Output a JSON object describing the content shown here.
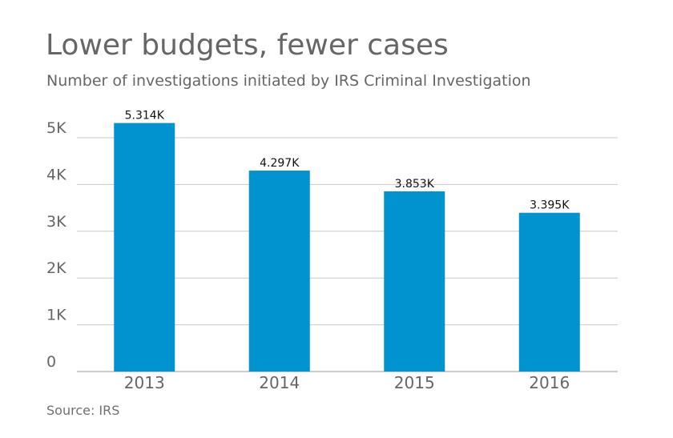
{
  "chart_data": {
    "type": "bar",
    "title": "Lower budgets, fewer cases",
    "subtitle": "Number of investigations initiated by IRS Criminal Investigation",
    "source": "Source: IRS",
    "categories": [
      "2013",
      "2014",
      "2015",
      "2016"
    ],
    "values": [
      5314,
      4297,
      3853,
      3395
    ],
    "data_labels": [
      "5.314K",
      "4.297K",
      "3.853K",
      "3.395K"
    ],
    "y_ticks": [
      0,
      1000,
      2000,
      3000,
      4000,
      5000
    ],
    "y_tick_labels": [
      "0",
      "1K",
      "2K",
      "3K",
      "4K",
      "5K"
    ],
    "ylim": [
      0,
      5000
    ],
    "xlabel": "",
    "ylabel": "",
    "grid": true,
    "legend": "none",
    "colors": {
      "bar": "#0093d0",
      "grid": "#c8c8c8",
      "axis": "#999999",
      "text": "#666666"
    }
  }
}
